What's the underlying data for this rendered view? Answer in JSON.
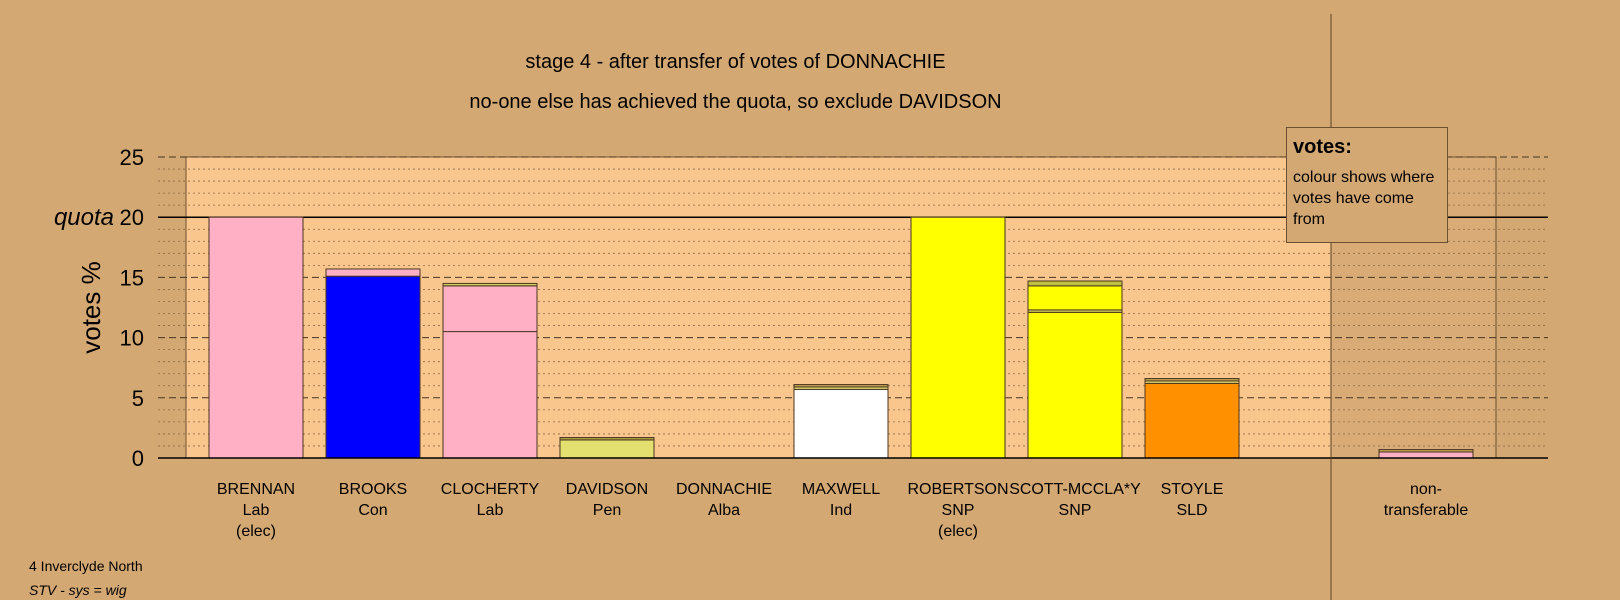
{
  "title": "stage 4 - after transfer of votes of DONNACHIE",
  "subtitle": "no-one else has achieved the quota, so exclude DAVIDSON",
  "footer": {
    "line1": "4 Inverclyde North",
    "line2": "STV - sys = wig"
  },
  "legend": {
    "title": "votes:",
    "body": "colour shows where votes have come from"
  },
  "colors": {
    "background": "#d4a873",
    "plot": "#f9c78d",
    "shaded": "#c89e6b"
  },
  "chart_data": {
    "type": "bar",
    "stacked": true,
    "ylabel": "votes %",
    "ylim": [
      0,
      25
    ],
    "yticks": [
      0,
      5,
      10,
      15,
      20,
      25
    ],
    "quota": 20,
    "quota_label": "quota",
    "categories": [
      {
        "name": "BRENNAN",
        "party": "Lab",
        "note": "(elec)",
        "segments": [
          {
            "value": 20.0,
            "color": "#ffb0c4"
          }
        ]
      },
      {
        "name": "BROOKS",
        "party": "Con",
        "note": "",
        "segments": [
          {
            "value": 15.1,
            "color": "#0000ff"
          },
          {
            "value": 0.6,
            "color": "#ffb0c4"
          }
        ]
      },
      {
        "name": "CLOCHERTY",
        "party": "Lab",
        "note": "",
        "segments": [
          {
            "value": 10.5,
            "color": "#ffb0c4"
          },
          {
            "value": 3.8,
            "color": "#ffb0c4"
          },
          {
            "value": 0.2,
            "color": "#d4d060"
          }
        ]
      },
      {
        "name": "DAVIDSON",
        "party": "Pen",
        "note": "",
        "segments": [
          {
            "value": 1.5,
            "color": "#e4e070"
          },
          {
            "value": 0.2,
            "color": "#b0a040"
          }
        ]
      },
      {
        "name": "DONNACHIE",
        "party": "Alba",
        "note": "",
        "segments": []
      },
      {
        "name": "MAXWELL",
        "party": "Ind",
        "note": "",
        "segments": [
          {
            "value": 5.7,
            "color": "#ffffff"
          },
          {
            "value": 0.2,
            "color": "#e4e070"
          },
          {
            "value": 0.2,
            "color": "#c0a050"
          }
        ]
      },
      {
        "name": "ROBERTSON",
        "party": "SNP",
        "note": "(elec)",
        "segments": [
          {
            "value": 20.0,
            "color": "#ffff00"
          }
        ]
      },
      {
        "name": "SCOTT-MCCLA*Y",
        "party": "SNP",
        "note": "",
        "segments": [
          {
            "value": 12.1,
            "color": "#ffff00"
          },
          {
            "value": 0.2,
            "color": "#d4d060"
          },
          {
            "value": 2.0,
            "color": "#ffff00"
          },
          {
            "value": 0.4,
            "color": "#c0c040"
          }
        ]
      },
      {
        "name": "STOYLE",
        "party": "SLD",
        "note": "",
        "segments": [
          {
            "value": 6.2,
            "color": "#ff9000"
          },
          {
            "value": 0.2,
            "color": "#e4e070"
          },
          {
            "value": 0.2,
            "color": "#c0a050"
          }
        ]
      }
    ],
    "non_transferable": {
      "label1": "non-",
      "label2": "transferable",
      "segments": [
        {
          "value": 0.5,
          "color": "#ffb0c4"
        },
        {
          "value": 0.2,
          "color": "#c0a050"
        }
      ]
    }
  }
}
